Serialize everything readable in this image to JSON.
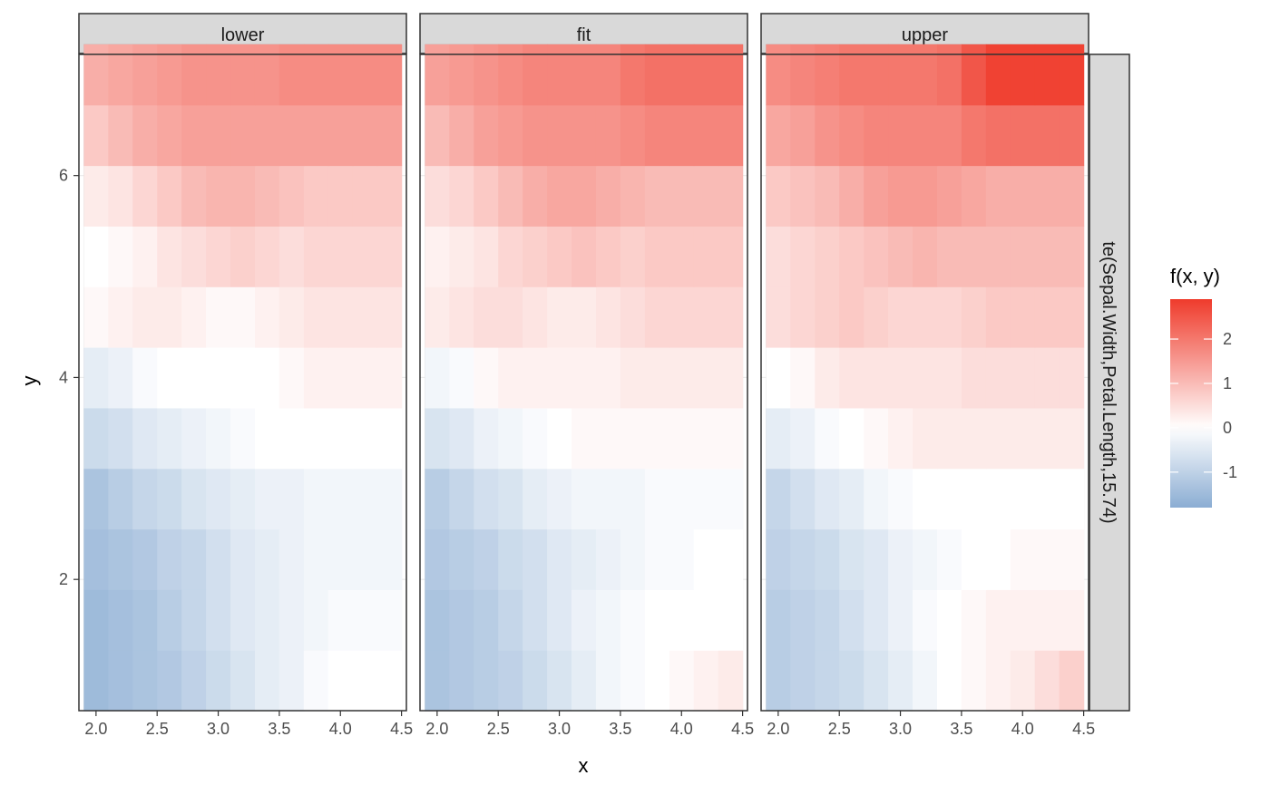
{
  "chart_data": {
    "type": "heatmap",
    "title": "",
    "xlabel": "x",
    "ylabel": "y",
    "x_ticks": [
      "2.0",
      "2.5",
      "3.0",
      "3.5",
      "4.0",
      "4.5"
    ],
    "x_tick_values": [
      2.0,
      2.5,
      3.0,
      3.5,
      4.0,
      4.5
    ],
    "y_ticks": [
      "2",
      "4",
      "6"
    ],
    "y_tick_values": [
      2,
      4,
      6
    ],
    "xlim": [
      1.86,
      4.54
    ],
    "ylim": [
      0.7,
      7.2
    ],
    "grid_x": [
      2.0,
      2.2,
      2.4,
      2.6,
      2.8,
      3.0,
      3.2,
      3.4,
      3.6,
      3.8,
      4.0,
      4.2,
      4.4
    ],
    "grid_y": [
      1.0,
      1.6,
      2.2,
      2.8,
      3.4,
      4.0,
      4.6,
      5.2,
      5.8,
      6.4,
      7.0
    ],
    "facets": [
      {
        "label": "lower",
        "values": [
          [
            -1.5,
            -1.4,
            -1.3,
            -1.2,
            -1.0,
            -0.8,
            -0.6,
            -0.4,
            -0.3,
            -0.1,
            0.0,
            0.0,
            0.0
          ],
          [
            -1.5,
            -1.4,
            -1.3,
            -1.1,
            -0.9,
            -0.7,
            -0.5,
            -0.4,
            -0.3,
            -0.2,
            -0.1,
            -0.1,
            -0.1
          ],
          [
            -1.4,
            -1.3,
            -1.2,
            -1.0,
            -0.9,
            -0.7,
            -0.5,
            -0.4,
            -0.3,
            -0.2,
            -0.2,
            -0.2,
            -0.2
          ],
          [
            -1.3,
            -1.1,
            -0.9,
            -0.8,
            -0.6,
            -0.5,
            -0.4,
            -0.3,
            -0.3,
            -0.2,
            -0.2,
            -0.2,
            -0.2
          ],
          [
            -0.8,
            -0.7,
            -0.5,
            -0.4,
            -0.3,
            -0.2,
            -0.1,
            0.0,
            0.0,
            0.0,
            0.0,
            0.0,
            0.0
          ],
          [
            -0.4,
            -0.3,
            -0.1,
            0.0,
            0.0,
            0.0,
            0.0,
            0.0,
            0.1,
            0.2,
            0.2,
            0.2,
            0.2
          ],
          [
            0.1,
            0.2,
            0.3,
            0.3,
            0.2,
            0.1,
            0.1,
            0.2,
            0.3,
            0.4,
            0.4,
            0.4,
            0.4
          ],
          [
            0.0,
            0.1,
            0.2,
            0.4,
            0.5,
            0.6,
            0.7,
            0.6,
            0.5,
            0.6,
            0.6,
            0.6,
            0.6
          ],
          [
            0.3,
            0.4,
            0.6,
            0.8,
            1.0,
            1.1,
            1.1,
            1.0,
            0.9,
            0.8,
            0.8,
            0.8,
            0.8
          ],
          [
            0.8,
            1.0,
            1.2,
            1.3,
            1.4,
            1.4,
            1.4,
            1.4,
            1.4,
            1.4,
            1.4,
            1.4,
            1.4
          ],
          [
            1.2,
            1.3,
            1.4,
            1.5,
            1.6,
            1.6,
            1.6,
            1.6,
            1.7,
            1.7,
            1.7,
            1.7,
            1.7
          ]
        ]
      },
      {
        "label": "fit",
        "values": [
          [
            -1.3,
            -1.2,
            -1.1,
            -1.0,
            -0.8,
            -0.6,
            -0.4,
            -0.2,
            -0.1,
            0.0,
            0.1,
            0.2,
            0.3
          ],
          [
            -1.3,
            -1.2,
            -1.1,
            -0.9,
            -0.7,
            -0.5,
            -0.3,
            -0.2,
            -0.1,
            0.0,
            0.0,
            0.0,
            0.0
          ],
          [
            -1.2,
            -1.1,
            -1.0,
            -0.8,
            -0.7,
            -0.5,
            -0.4,
            -0.3,
            -0.2,
            -0.1,
            -0.1,
            0.0,
            0.0
          ],
          [
            -1.1,
            -0.9,
            -0.7,
            -0.6,
            -0.4,
            -0.3,
            -0.2,
            -0.2,
            -0.2,
            -0.1,
            -0.1,
            -0.1,
            -0.1
          ],
          [
            -0.6,
            -0.5,
            -0.3,
            -0.2,
            -0.1,
            0.0,
            0.1,
            0.1,
            0.1,
            0.1,
            0.1,
            0.1,
            0.1
          ],
          [
            -0.2,
            -0.1,
            0.1,
            0.2,
            0.2,
            0.2,
            0.2,
            0.2,
            0.3,
            0.3,
            0.3,
            0.3,
            0.3
          ],
          [
            0.3,
            0.4,
            0.5,
            0.5,
            0.4,
            0.3,
            0.3,
            0.4,
            0.5,
            0.6,
            0.6,
            0.6,
            0.6
          ],
          [
            0.2,
            0.3,
            0.4,
            0.6,
            0.7,
            0.8,
            0.9,
            0.8,
            0.7,
            0.8,
            0.8,
            0.8,
            0.8
          ],
          [
            0.5,
            0.6,
            0.8,
            1.0,
            1.2,
            1.3,
            1.3,
            1.2,
            1.1,
            1.0,
            1.0,
            1.0,
            1.0
          ],
          [
            1.0,
            1.2,
            1.4,
            1.5,
            1.6,
            1.6,
            1.6,
            1.6,
            1.7,
            1.8,
            1.8,
            1.8,
            1.8
          ],
          [
            1.4,
            1.5,
            1.6,
            1.7,
            1.8,
            1.8,
            1.8,
            1.8,
            2.0,
            2.1,
            2.1,
            2.1,
            2.1
          ]
        ]
      },
      {
        "label": "upper",
        "values": [
          [
            -1.1,
            -1.0,
            -0.9,
            -0.8,
            -0.6,
            -0.4,
            -0.2,
            0.0,
            0.1,
            0.2,
            0.3,
            0.5,
            0.7
          ],
          [
            -1.1,
            -1.0,
            -0.9,
            -0.7,
            -0.5,
            -0.3,
            -0.1,
            0.0,
            0.1,
            0.2,
            0.2,
            0.2,
            0.2
          ],
          [
            -1.0,
            -0.9,
            -0.8,
            -0.6,
            -0.5,
            -0.3,
            -0.2,
            -0.1,
            0.0,
            0.0,
            0.1,
            0.1,
            0.1
          ],
          [
            -0.9,
            -0.7,
            -0.5,
            -0.4,
            -0.2,
            -0.1,
            0.0,
            0.0,
            0.0,
            0.0,
            0.0,
            0.0,
            0.0
          ],
          [
            -0.4,
            -0.3,
            -0.1,
            0.0,
            0.1,
            0.2,
            0.3,
            0.3,
            0.3,
            0.3,
            0.3,
            0.3,
            0.3
          ],
          [
            0.0,
            0.1,
            0.3,
            0.4,
            0.4,
            0.4,
            0.4,
            0.4,
            0.5,
            0.5,
            0.5,
            0.5,
            0.5
          ],
          [
            0.5,
            0.6,
            0.7,
            0.8,
            0.7,
            0.6,
            0.6,
            0.6,
            0.7,
            0.8,
            0.8,
            0.8,
            0.8
          ],
          [
            0.5,
            0.6,
            0.7,
            0.8,
            0.9,
            1.0,
            1.1,
            1.0,
            1.0,
            1.0,
            1.0,
            1.0,
            1.0
          ],
          [
            0.8,
            0.9,
            1.0,
            1.2,
            1.4,
            1.5,
            1.5,
            1.4,
            1.3,
            1.2,
            1.2,
            1.2,
            1.2
          ],
          [
            1.3,
            1.4,
            1.6,
            1.7,
            1.8,
            1.8,
            1.8,
            1.8,
            2.0,
            2.1,
            2.1,
            2.1,
            2.1
          ],
          [
            1.7,
            1.8,
            1.9,
            2.0,
            2.0,
            2.0,
            2.0,
            2.1,
            2.5,
            2.8,
            2.8,
            2.8,
            2.8
          ]
        ]
      }
    ],
    "row_strip": "te(Sepal.Width,Petal.Length,15.74)",
    "legend": {
      "title": "f(x, y)",
      "labels": [
        "2",
        "1",
        "0",
        "-1"
      ],
      "values": [
        2,
        1,
        0,
        -1
      ],
      "range": [
        -1.8,
        2.9
      ],
      "low_color": "#8BADD3",
      "mid_color": "#FFFFFF",
      "high_color": "#EF3B2C"
    },
    "na_color": "#7F7F7F",
    "contour_color": "#3D3D3D",
    "grid": true,
    "legend_position": "right"
  }
}
